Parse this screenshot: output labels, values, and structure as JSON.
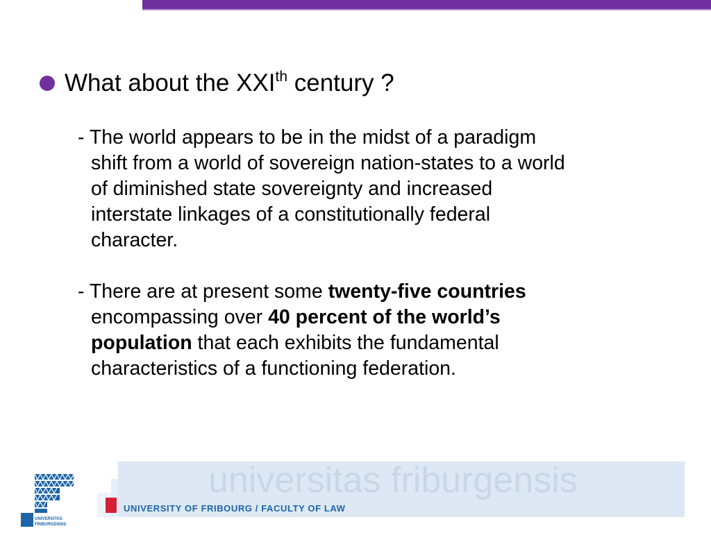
{
  "colors": {
    "accent": "#7030A0",
    "footer_blue": "#1e64a8",
    "footer_red": "#d5203a"
  },
  "title": {
    "main": "What about the XXI",
    "sup": "th",
    "rest": " century ?"
  },
  "paragraphs": [
    {
      "lines": [
        "- The world appears to be in the midst of a paradigm",
        "shift from a world of sovereign nation-states to a world",
        "of diminished state sovereignty and increased",
        "interstate linkages of a constitutionally federal",
        "character."
      ]
    },
    {
      "l1_a": "- There are at present some ",
      "l1_b": "twenty-five countries",
      "l2_a": "encompassing over ",
      "l2_b": "40 percent of the world’s",
      "l3_a": "population",
      "l3_b": " that each exhibits the fundamental",
      "l4": "characteristics of a functioning federation."
    }
  ],
  "footer": {
    "institution": "UNIVERSITY OF FRIBOURG / FACULTY OF LAW",
    "watermark": "universitas friburgensis",
    "logo_text": "UNIVERSITAS FRIBURGENSIS"
  }
}
